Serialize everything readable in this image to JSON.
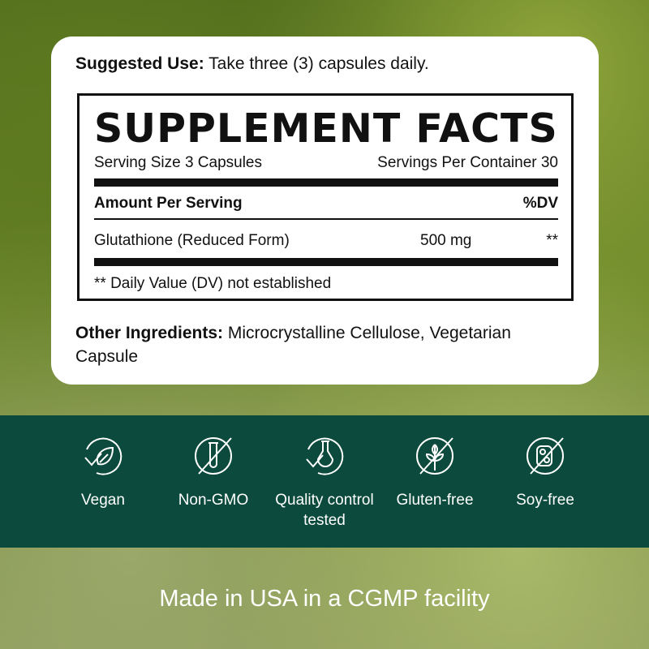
{
  "suggested_use": {
    "label": "Suggested Use:",
    "text": "Take three (3) capsules daily."
  },
  "facts": {
    "title": "SUPPLEMENT FACTS",
    "serving_size": "Serving Size 3 Capsules",
    "servings_per_container": "Servings Per Container 30",
    "amount_header": "Amount Per Serving",
    "dv_header": "%DV",
    "ingredients": [
      {
        "name": "Glutathione (Reduced Form)",
        "amount": "500 mg",
        "dv": "**"
      }
    ],
    "footnote": "** Daily Value (DV) not established"
  },
  "other_ingredients": {
    "label": "Other Ingredients:",
    "text": "Microcrystalline Cellulose, Vegetarian Capsule"
  },
  "badges": [
    {
      "icon": "leaf-check-icon",
      "label": "Vegan"
    },
    {
      "icon": "test-tube-crossed-icon",
      "label": "Non-GMO"
    },
    {
      "icon": "flask-check-icon",
      "label": "Quality control tested"
    },
    {
      "icon": "wheat-crossed-icon",
      "label": "Gluten-free"
    },
    {
      "icon": "soy-crossed-icon",
      "label": "Soy-free"
    }
  ],
  "footer": "Made in USA in a CGMP facility",
  "colors": {
    "band": "#0b4a3c",
    "card": "#ffffff"
  }
}
